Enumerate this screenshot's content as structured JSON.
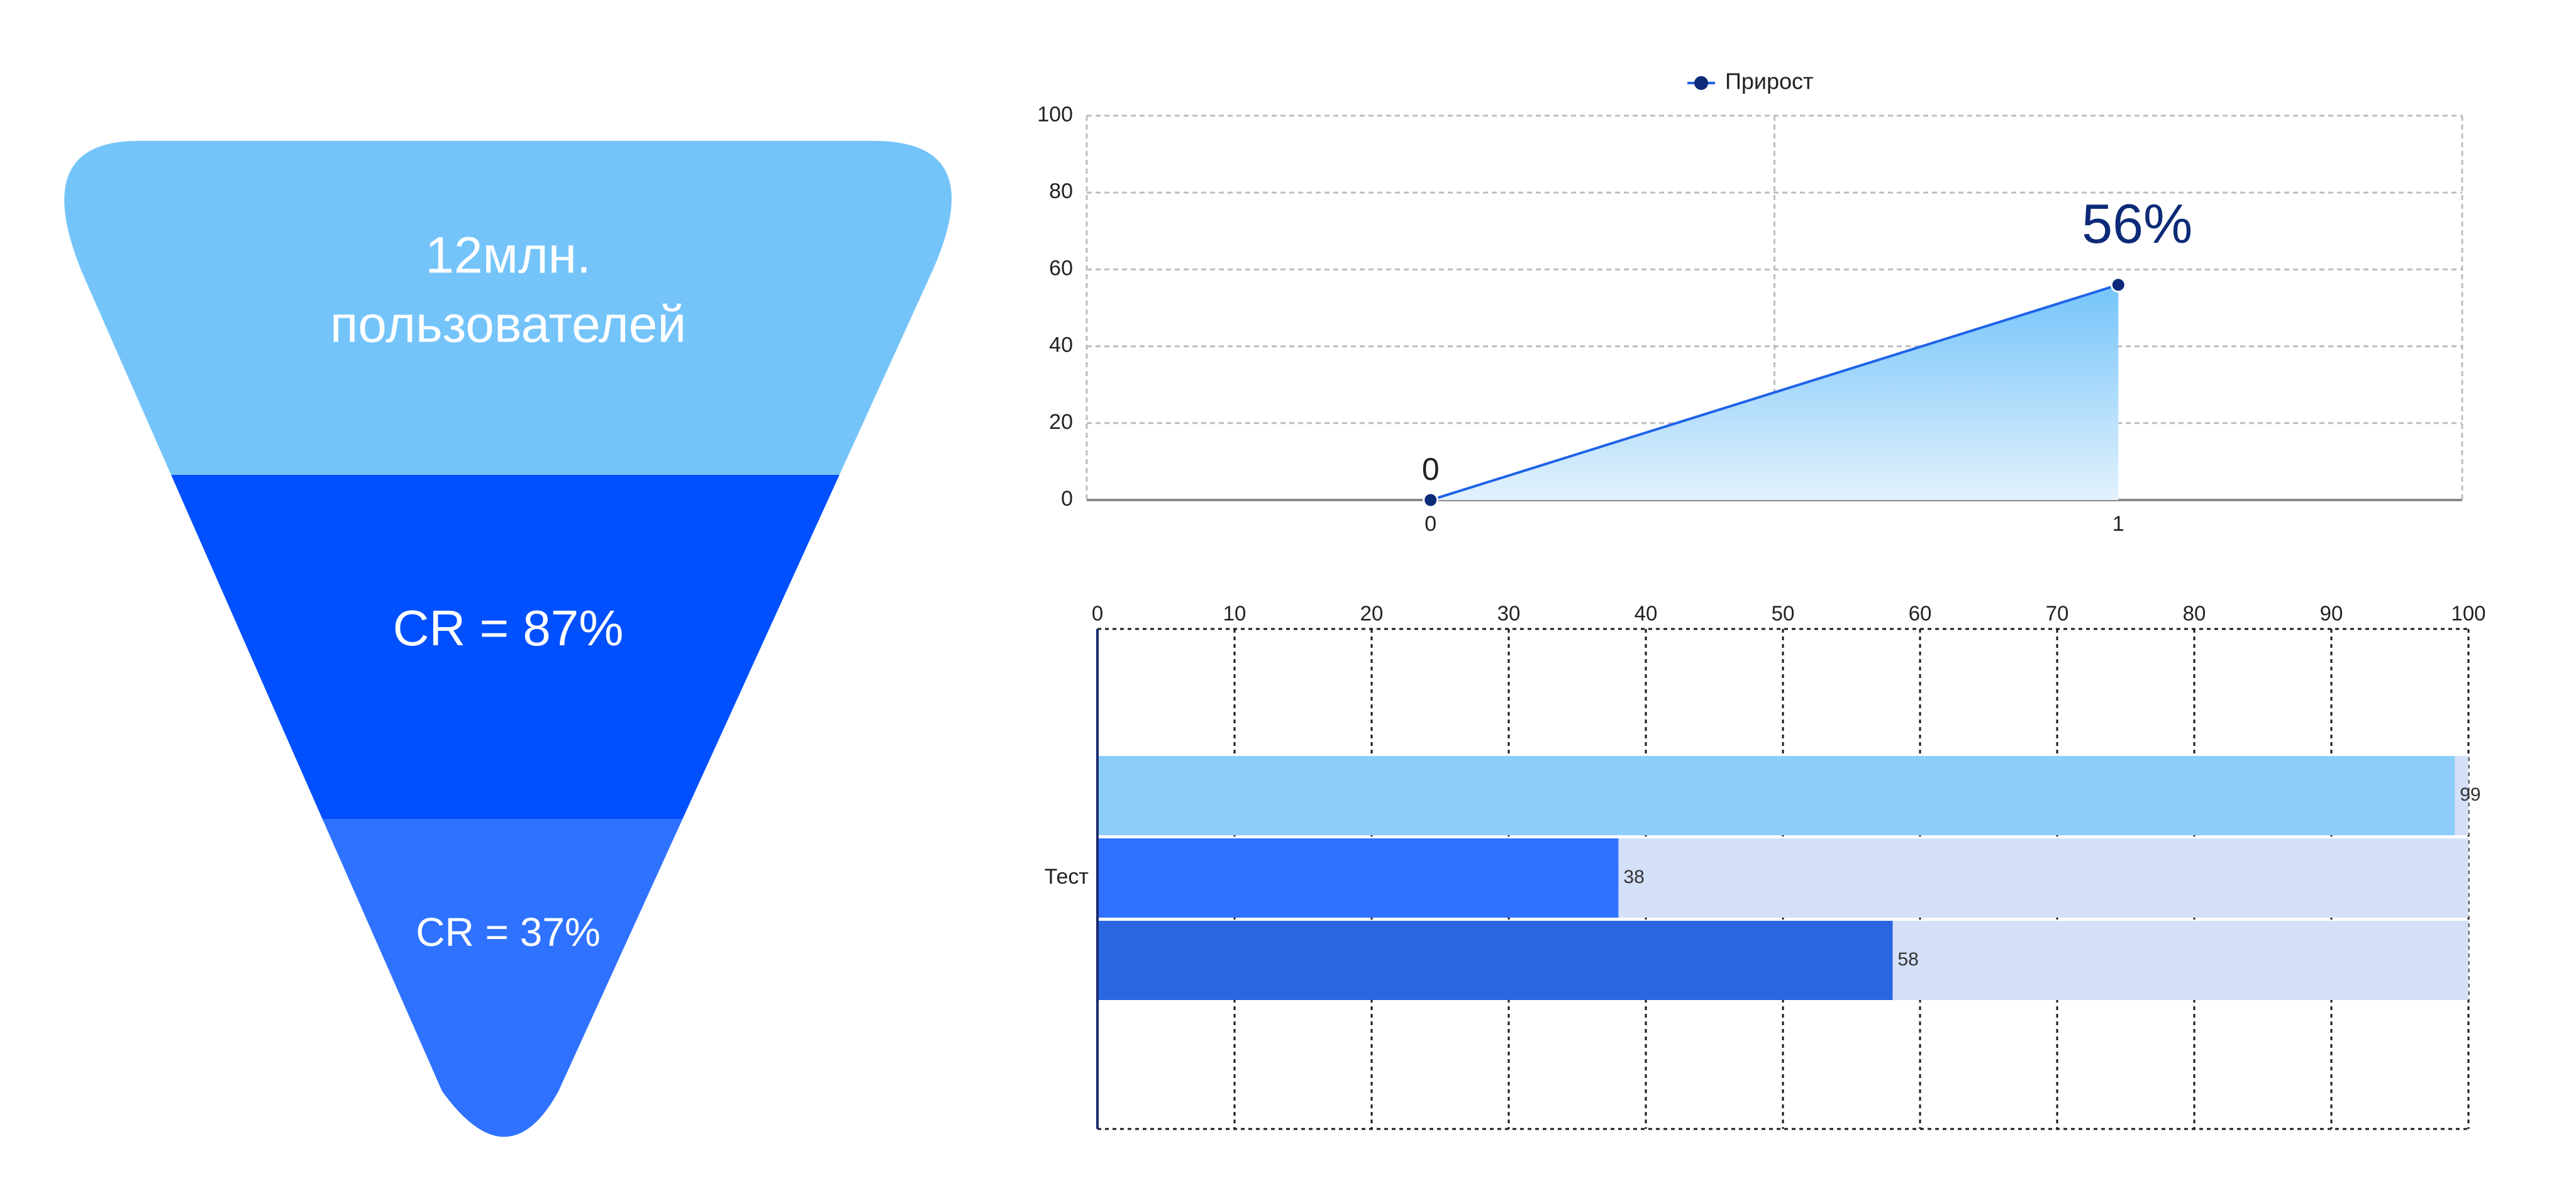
{
  "funnel": {
    "segments": [
      {
        "label_lines": [
          "12млн.",
          "пользователей"
        ],
        "color": "#74C4FA"
      },
      {
        "label_lines": [
          "CR = 87%"
        ],
        "color": "#0050FF"
      },
      {
        "label_lines": [
          "CR = 37%"
        ],
        "color": "#2F72FF"
      }
    ]
  },
  "chart_data": [
    {
      "type": "area",
      "legend": {
        "entries": [
          "Прирост"
        ],
        "placement": "top-center"
      },
      "x": [
        0,
        1
      ],
      "x_ticks": [
        "0",
        "1"
      ],
      "series": [
        {
          "name": "Прирост",
          "values": [
            0,
            56
          ],
          "point_labels": [
            "0",
            "56%"
          ],
          "color": "#1E63E9",
          "marker_color": "#0D2A78"
        }
      ],
      "y_ticks": [
        "0",
        "20",
        "40",
        "60",
        "80",
        "100"
      ],
      "ylim": [
        0,
        100
      ],
      "xlim": [
        -0.5,
        1.5
      ],
      "grid": true
    },
    {
      "type": "bar",
      "orientation": "horizontal",
      "categories": [
        "Тест"
      ],
      "series": [
        {
          "values": [
            99
          ],
          "value_labels": [
            "99"
          ],
          "color": "#8CCDFA"
        },
        {
          "values": [
            38
          ],
          "value_labels": [
            "38"
          ],
          "color": "#2E72FF"
        },
        {
          "values": [
            58
          ],
          "value_labels": [
            "58"
          ],
          "color": "#2A66DF"
        }
      ],
      "background_color": "#D4E0F8",
      "x_ticks": [
        "0",
        "10",
        "20",
        "30",
        "40",
        "50",
        "60",
        "70",
        "80",
        "90",
        "100"
      ],
      "xlim": [
        0,
        100
      ],
      "axis_position": "top",
      "grid": true
    }
  ]
}
